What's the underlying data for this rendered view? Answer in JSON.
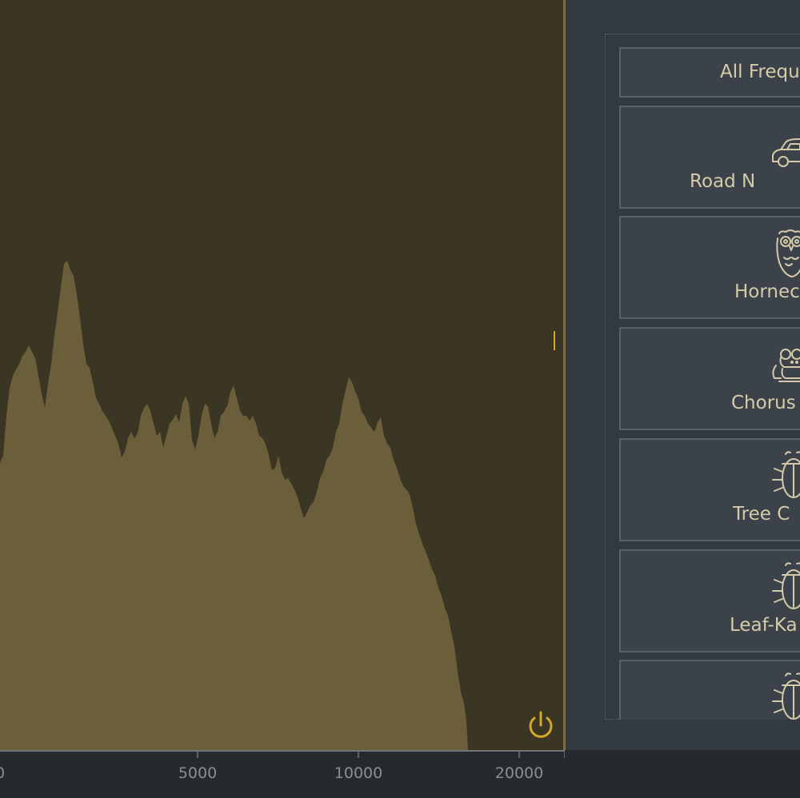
{
  "spectrum": {
    "fill_color": "#6b5e3a",
    "background_color": "#3b3524",
    "accent_color": "#d4a92a"
  },
  "axis": {
    "ticks": [
      "0",
      "5000",
      "10000",
      "20000"
    ]
  },
  "sound_list": {
    "items": [
      {
        "label": "All Frequ",
        "icon": "none"
      },
      {
        "label": "Road N",
        "icon": "car-icon"
      },
      {
        "label": "Hornec",
        "icon": "owl-icon"
      },
      {
        "label": "Chorus",
        "icon": "frog-icon"
      },
      {
        "label": "Tree C",
        "icon": "beetle-icon"
      },
      {
        "label": "Leaf-Ka",
        "icon": "beetle-icon"
      },
      {
        "label": "",
        "icon": "beetle-icon"
      }
    ]
  },
  "controls": {
    "power_icon": "power-icon"
  }
}
